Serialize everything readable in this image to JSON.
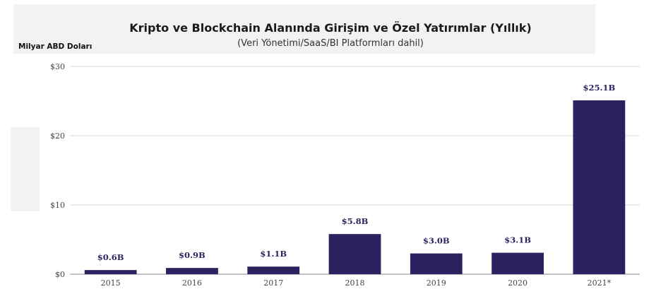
{
  "chart_data": {
    "type": "bar",
    "title": "Kripto ve Blockchain Alanında Girişim ve Özel Yatırımlar (Yıllık)",
    "subtitle": "(Veri Yönetimi/SaaS/BI Platformları dahil)",
    "ylabel": "Milyar ABD Doları",
    "xlabel": "",
    "categories": [
      "2015",
      "2016",
      "2017",
      "2018",
      "2019",
      "2020",
      "2021*"
    ],
    "values": [
      0.6,
      0.9,
      1.1,
      5.8,
      3.0,
      3.1,
      25.1
    ],
    "data_labels": [
      "$0.6B",
      "$0.9B",
      "$1.1B",
      "$5.8B",
      "$3.0B",
      "$3.1B",
      "$25.1B"
    ],
    "y_ticks": [
      0,
      10,
      20,
      30
    ],
    "y_tick_labels": [
      "$0",
      "$10",
      "$20",
      "$30"
    ],
    "ylim": [
      0,
      30
    ],
    "grid": true,
    "legend": "none",
    "colors": {
      "bar": "#2e2160",
      "label": "#2e2160",
      "grid": "#d9d9d9"
    }
  }
}
